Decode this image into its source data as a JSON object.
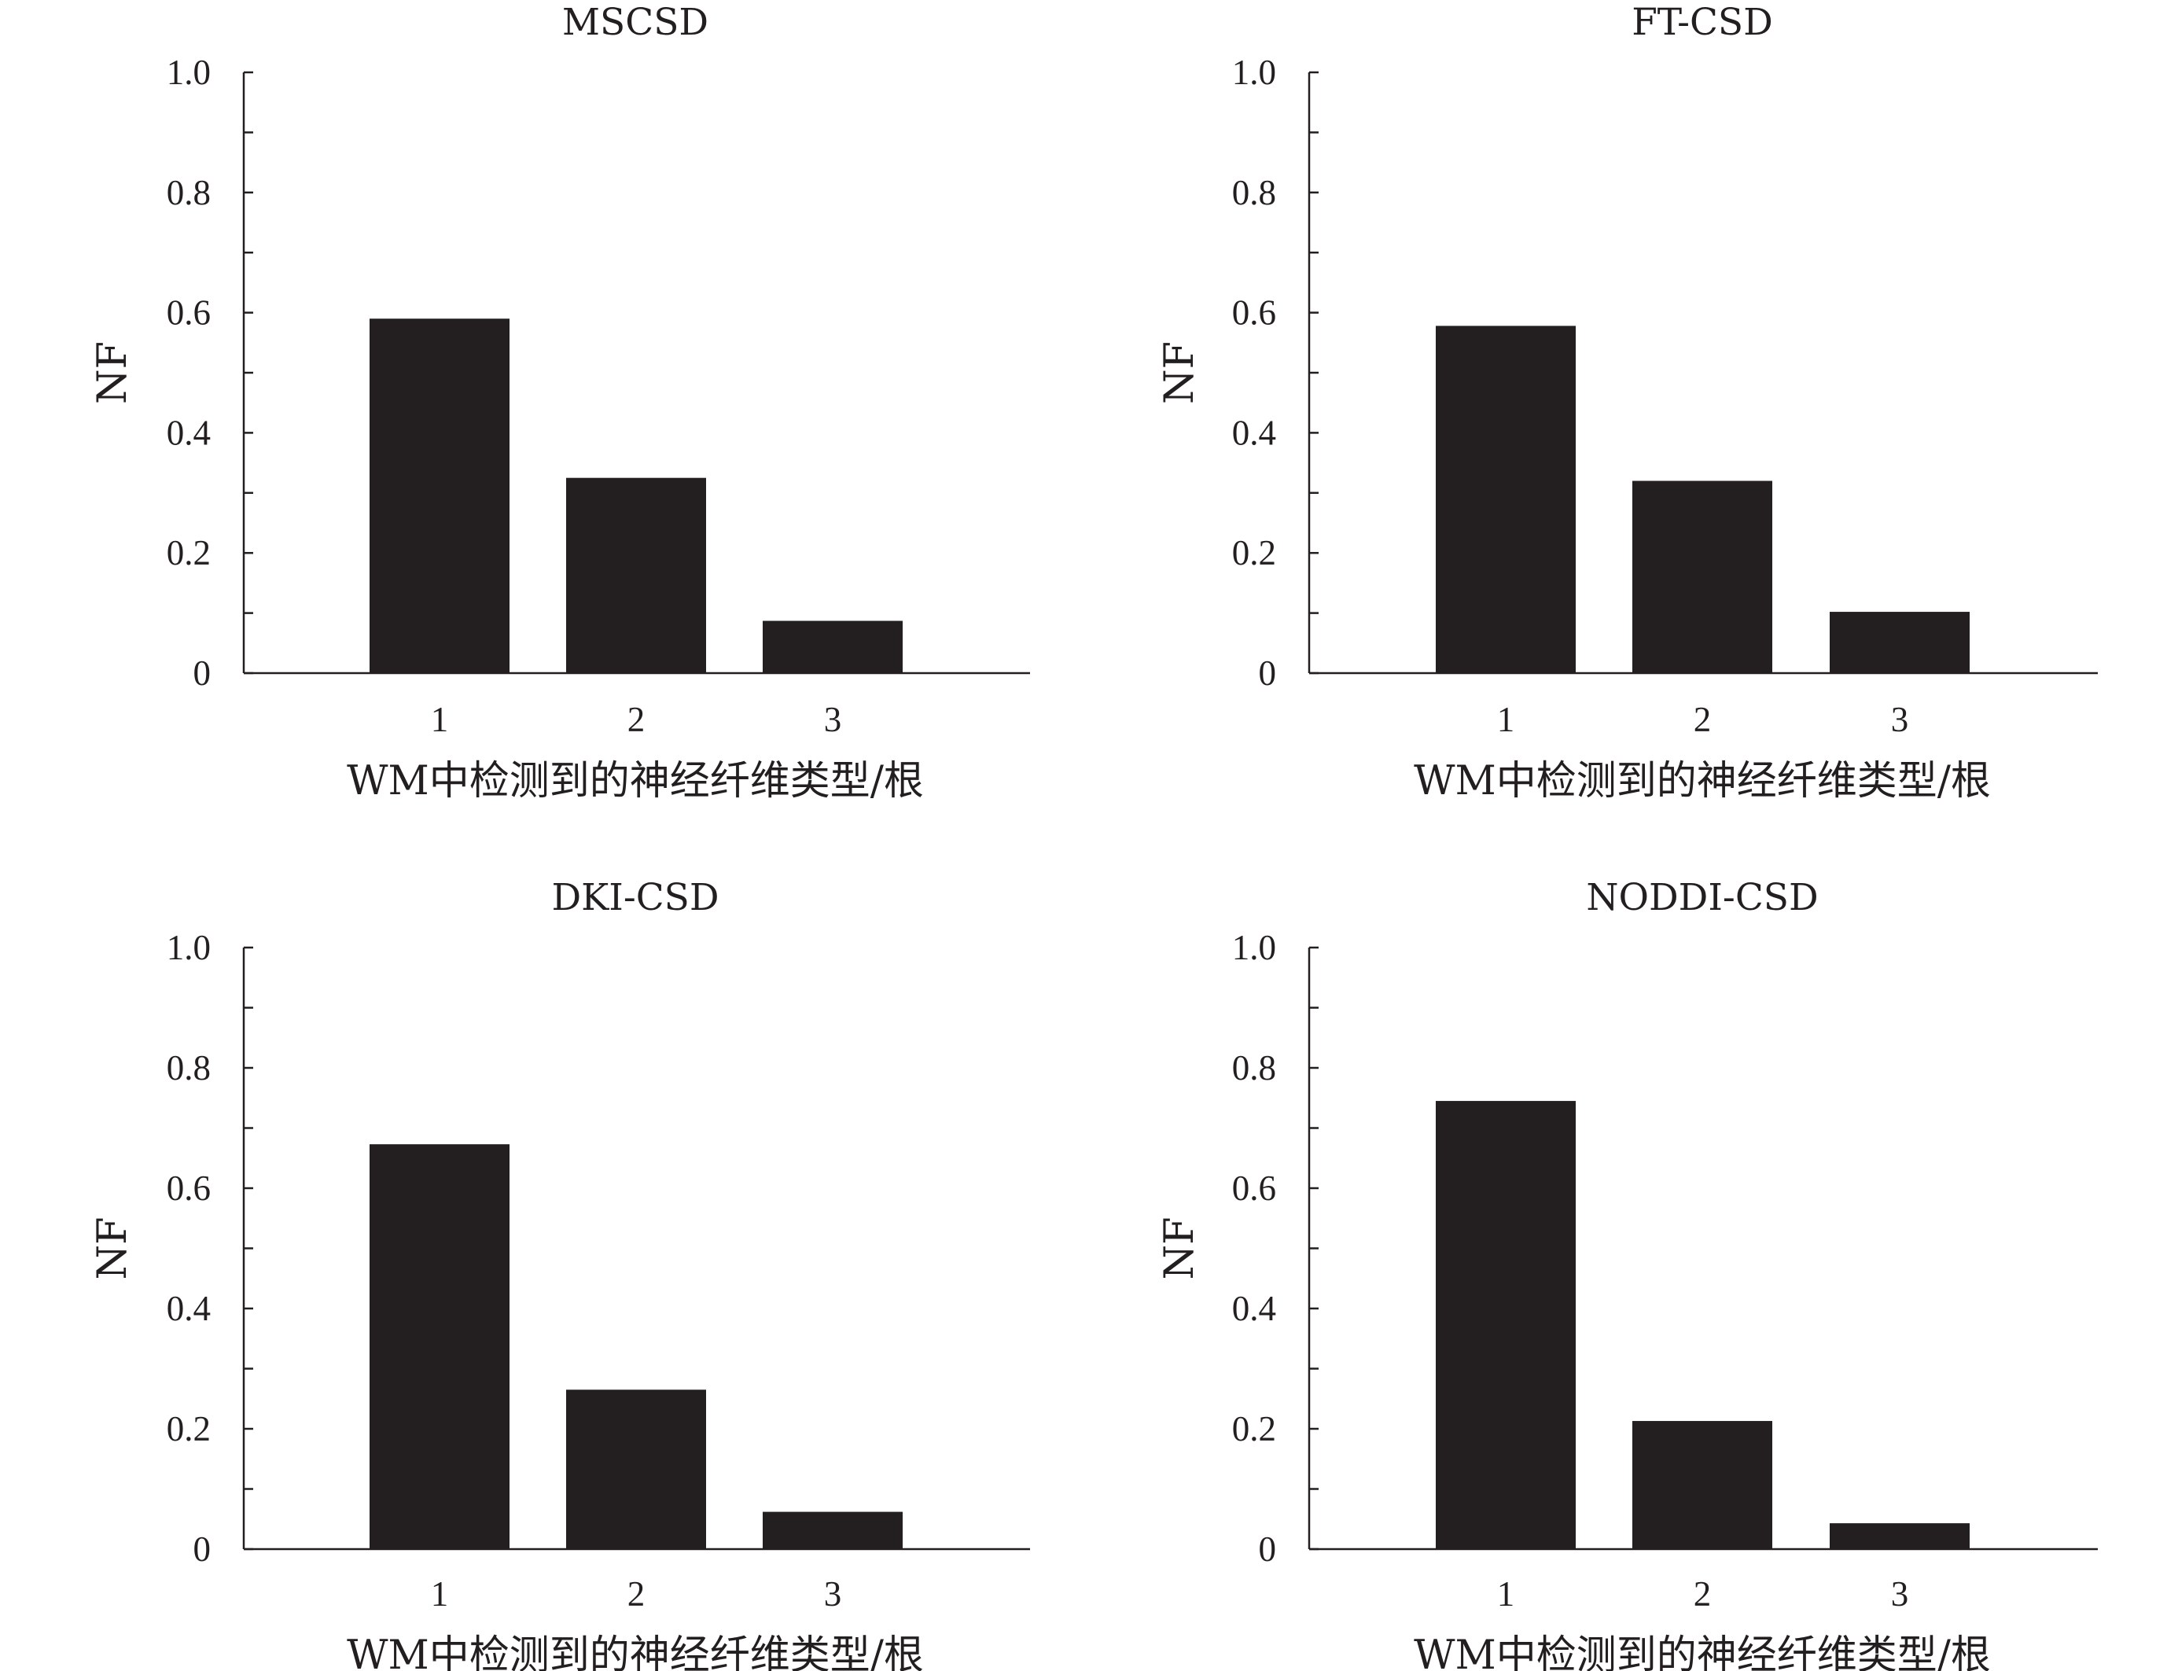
{
  "chart_data": [
    {
      "type": "bar",
      "title": "MSCSD",
      "categories": [
        "1",
        "2",
        "3"
      ],
      "values": [
        0.59,
        0.325,
        0.087
      ],
      "xlabel": "WM中检测到的神经纤维类型/根",
      "ylabel": "NF",
      "ylim": [
        0,
        1.0
      ],
      "yticks": [
        "0",
        "0.2",
        "0.4",
        "0.6",
        "0.8",
        "1.0"
      ],
      "grid": false,
      "bar_color": "#231f20"
    },
    {
      "type": "bar",
      "title": "FT-CSD",
      "categories": [
        "1",
        "2",
        "3"
      ],
      "values": [
        0.578,
        0.32,
        0.102
      ],
      "xlabel": "WM中检测到的神经纤维类型/根",
      "ylabel": "NF",
      "ylim": [
        0,
        1.0
      ],
      "yticks": [
        "0",
        "0.2",
        "0.4",
        "0.6",
        "0.8",
        "1.0"
      ],
      "grid": false,
      "bar_color": "#231f20"
    },
    {
      "type": "bar",
      "title": "DKI-CSD",
      "categories": [
        "1",
        "2",
        "3"
      ],
      "values": [
        0.673,
        0.265,
        0.062
      ],
      "xlabel": "WM中检测到的神经纤维类型/根",
      "ylabel": "NF",
      "ylim": [
        0,
        1.0
      ],
      "yticks": [
        "0",
        "0.2",
        "0.4",
        "0.6",
        "0.8",
        "1.0"
      ],
      "grid": false,
      "bar_color": "#231f20"
    },
    {
      "type": "bar",
      "title": "NODDI-CSD",
      "categories": [
        "1",
        "2",
        "3"
      ],
      "values": [
        0.745,
        0.213,
        0.043
      ],
      "xlabel": "WM中检测到的神经纤维类型/根",
      "ylabel": "NF",
      "ylim": [
        0,
        1.0
      ],
      "yticks": [
        "0",
        "0.2",
        "0.4",
        "0.6",
        "0.8",
        "1.0"
      ],
      "grid": false,
      "bar_color": "#231f20"
    }
  ]
}
